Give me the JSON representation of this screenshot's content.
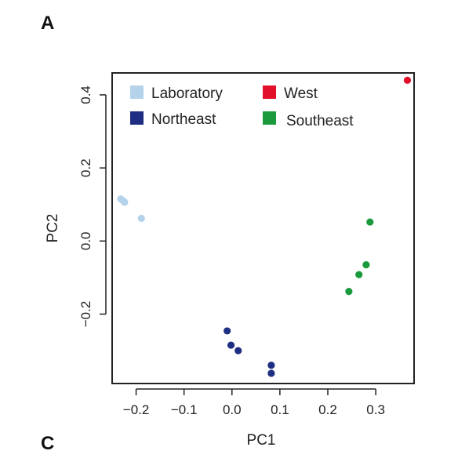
{
  "panel_labels": {
    "top": "A",
    "bottom": "C"
  },
  "chart_data": {
    "type": "scatter",
    "xlabel": "PC1",
    "ylabel": "PC2",
    "xlim": [
      -0.25,
      0.38
    ],
    "ylim": [
      -0.39,
      0.46
    ],
    "xticks": [
      -0.2,
      -0.1,
      0.0,
      0.1,
      0.2,
      0.3
    ],
    "xtick_labels": [
      "−0.2",
      "−0.1",
      "0.0",
      "0.1",
      "0.2",
      "0.3"
    ],
    "yticks": [
      -0.2,
      0.0,
      0.2,
      0.4
    ],
    "ytick_labels": [
      "−0.2",
      "0.0",
      "0.2",
      "0.4"
    ],
    "grid": false,
    "legend_position": "top",
    "series": [
      {
        "name": "Laboratory",
        "color": "#b4d3ea",
        "points": [
          [
            -0.232,
            0.115
          ],
          [
            -0.227,
            0.11
          ],
          [
            -0.224,
            0.106
          ],
          [
            -0.189,
            0.062
          ]
        ]
      },
      {
        "name": "West",
        "color": "#e3102a",
        "points": [
          [
            0.366,
            0.44
          ]
        ]
      },
      {
        "name": "Northeast",
        "color": "#1e2e82",
        "points": [
          [
            -0.01,
            -0.246
          ],
          [
            -0.002,
            -0.285
          ],
          [
            0.013,
            -0.3
          ],
          [
            0.082,
            -0.34
          ],
          [
            0.082,
            -0.362
          ]
        ]
      },
      {
        "name": "Southeast",
        "color": "#1b9a3d",
        "points": [
          [
            0.288,
            0.052
          ],
          [
            0.28,
            -0.065
          ],
          [
            0.265,
            -0.092
          ],
          [
            0.244,
            -0.138
          ]
        ]
      }
    ]
  }
}
